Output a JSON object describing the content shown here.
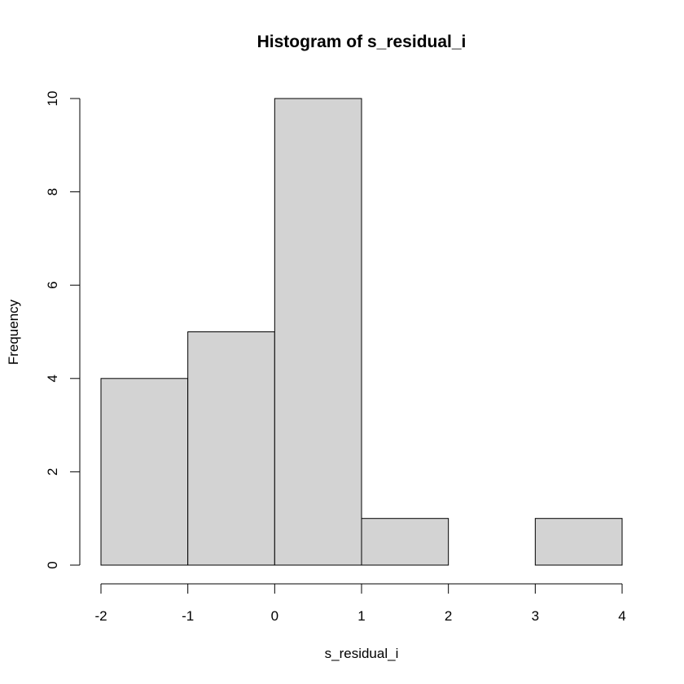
{
  "chart_data": {
    "type": "bar",
    "title": "Histogram of s_residual_i",
    "xlabel": "s_residual_i",
    "ylabel": "Frequency",
    "bins": [
      {
        "start": -2,
        "end": -1,
        "count": 4
      },
      {
        "start": -1,
        "end": 0,
        "count": 5
      },
      {
        "start": 0,
        "end": 1,
        "count": 10
      },
      {
        "start": 1,
        "end": 2,
        "count": 1
      },
      {
        "start": 2,
        "end": 3,
        "count": 0
      },
      {
        "start": 3,
        "end": 4,
        "count": 1
      }
    ],
    "xlim": [
      -2,
      4
    ],
    "ylim": [
      0,
      10
    ],
    "xticks": [
      -2,
      -1,
      0,
      1,
      2,
      3,
      4
    ],
    "yticks": [
      0,
      2,
      4,
      6,
      8,
      10
    ],
    "bar_fill": "#d3d3d3",
    "bar_stroke": "#000000",
    "grid": false,
    "legend": "none"
  }
}
